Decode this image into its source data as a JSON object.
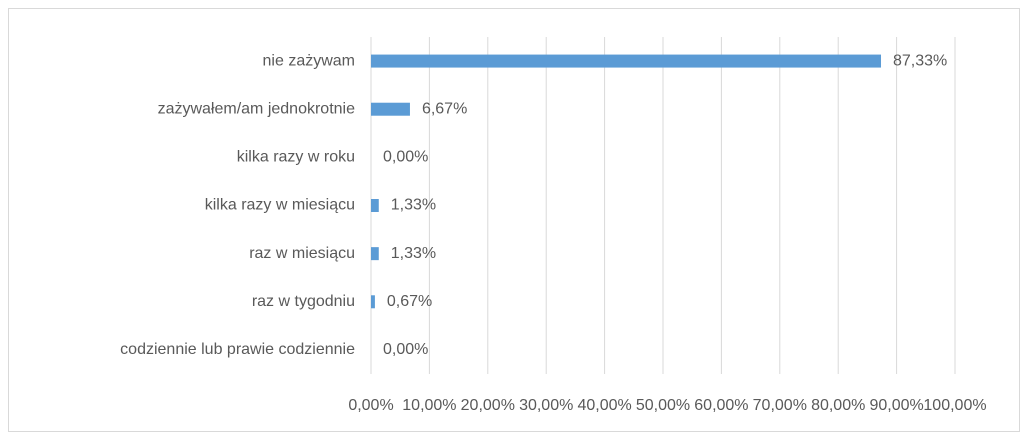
{
  "chart_data": {
    "type": "bar",
    "orientation": "horizontal",
    "categories": [
      "nie zażywam",
      "zażywałem/am  jednokrotnie",
      "kilka razy w roku",
      "kilka razy w miesiącu",
      "raz w miesiącu",
      "raz w tygodniu",
      "codziennie lub prawie codziennie"
    ],
    "values": [
      87.33,
      6.67,
      0,
      1.33,
      1.33,
      0.67,
      0
    ],
    "value_labels": [
      "87,33%",
      "6,67%",
      "0,00%",
      "1,33%",
      "1,33%",
      "0,67%",
      "0,00%"
    ],
    "color": "#5b9bd5",
    "xlim": [
      0,
      100
    ],
    "xticks": [
      {
        "value": 0,
        "label": "0,00%"
      },
      {
        "value": 10,
        "label": "10,00%"
      },
      {
        "value": 20,
        "label": "20,00%"
      },
      {
        "value": 30,
        "label": "30,00%"
      },
      {
        "value": 40,
        "label": "40,00%"
      },
      {
        "value": 50,
        "label": "50,00%"
      },
      {
        "value": 60,
        "label": "60,00%"
      },
      {
        "value": 70,
        "label": "70,00%"
      },
      {
        "value": 80,
        "label": "80,00%"
      },
      {
        "value": 90,
        "label": "90,00%"
      },
      {
        "value": 100,
        "label": "100,00%"
      }
    ],
    "grid": true
  }
}
